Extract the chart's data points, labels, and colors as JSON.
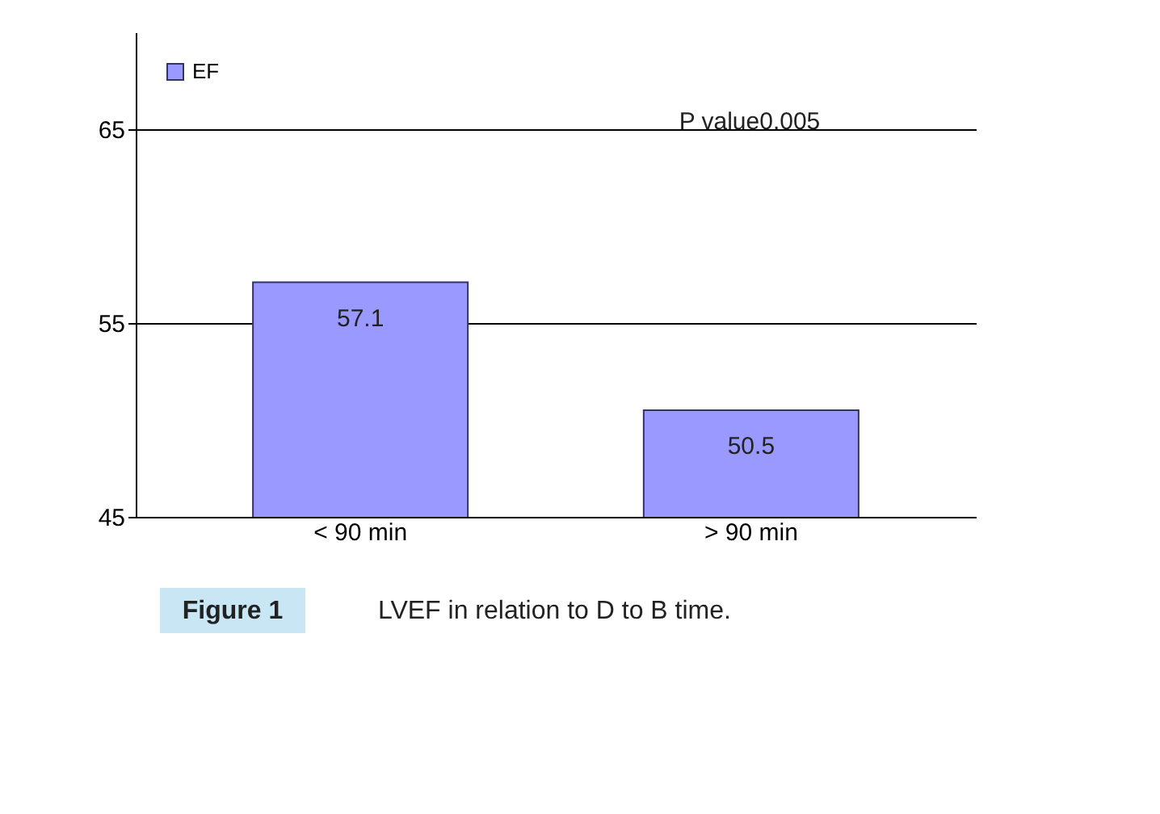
{
  "chart_data": {
    "type": "bar",
    "categories": [
      "< 90 min",
      "> 90 min"
    ],
    "series": [
      {
        "name": "EF",
        "color": "#9999ff",
        "values": [
          57.1,
          50.5
        ]
      }
    ],
    "ylim": [
      45,
      70
    ],
    "yticks": [
      45,
      55,
      65
    ],
    "grid": "y",
    "legend": "top left",
    "data_labels": true,
    "annotations": [
      {
        "text": "P value0.005"
      },
      "Figure 1",
      "LVEF in relation to D to B time."
    ]
  }
}
